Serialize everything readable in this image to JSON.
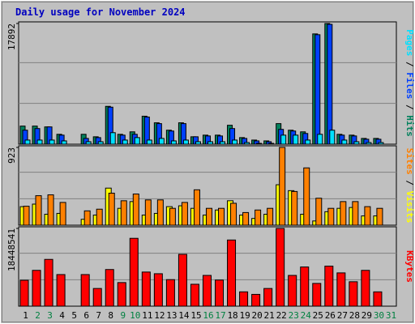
{
  "chart_data": [
    {
      "type": "bar",
      "title": "Daily usage for November 2024",
      "ylim": [
        0,
        17892
      ],
      "yticks": [
        17892
      ],
      "series": [
        {
          "name": "Hits",
          "color": "#00805c",
          "values": [
            2684,
            2684,
            2562,
            1464,
            0,
            1464,
            1098,
            5612,
            1464,
            1830,
            4148,
            3172,
            2074,
            3172,
            1098,
            1342,
            1342,
            2806,
            976,
            610,
            488,
            3050,
            2074,
            1830,
            16350,
            17892,
            1464,
            1342,
            854,
            854,
            0
          ]
        },
        {
          "name": "Files",
          "color": "#0040ff",
          "values": [
            2074,
            2318,
            2562,
            1342,
            0,
            854,
            976,
            5490,
            1342,
            1464,
            4026,
            3050,
            1952,
            3050,
            1098,
            1220,
            1220,
            2318,
            854,
            488,
            366,
            2196,
            1952,
            1586,
            16230,
            17770,
            1342,
            1220,
            732,
            732,
            0
          ]
        },
        {
          "name": "Pages",
          "color": "#00e0ff",
          "values": [
            610,
            610,
            610,
            488,
            0,
            366,
            366,
            1708,
            610,
            976,
            610,
            854,
            488,
            610,
            366,
            366,
            366,
            610,
            244,
            122,
            122,
            1342,
            1342,
            610,
            1464,
            2074,
            610,
            366,
            244,
            244,
            0
          ]
        }
      ]
    },
    {
      "type": "bar",
      "ylim": [
        0,
        923
      ],
      "yticks": [
        923
      ],
      "series": [
        {
          "name": "Visits",
          "color": "#ffff00",
          "values": [
            220,
            250,
            130,
            140,
            0,
            70,
            120,
            440,
            200,
            280,
            120,
            140,
            220,
            230,
            200,
            120,
            180,
            290,
            120,
            80,
            130,
            480,
            410,
            130,
            50,
            160,
            200,
            210,
            110,
            110,
            0
          ]
        },
        {
          "name": "Sites",
          "color": "#ff8000",
          "values": [
            225,
            350,
            360,
            270,
            0,
            170,
            190,
            380,
            290,
            370,
            300,
            300,
            200,
            270,
            420,
            200,
            200,
            260,
            150,
            180,
            200,
            923,
            400,
            680,
            320,
            200,
            280,
            280,
            220,
            200,
            0
          ]
        }
      ]
    },
    {
      "type": "bar",
      "ylim": [
        0,
        18448541
      ],
      "yticks": [
        18448541
      ],
      "series": [
        {
          "name": "KBytes",
          "color": "#ff0000",
          "values": [
            6150000,
            8500000,
            11100000,
            7500000,
            0,
            7500000,
            4200000,
            8700000,
            5600000,
            16100000,
            8100000,
            7700000,
            6300000,
            12300000,
            5200000,
            7300000,
            6200000,
            15700000,
            3400000,
            2800000,
            4200000,
            18448541,
            7300000,
            9300000,
            5400000,
            9500000,
            7900000,
            5800000,
            8500000,
            3400000,
            0
          ]
        }
      ],
      "categories": [
        "1",
        "2",
        "3",
        "4",
        "5",
        "6",
        "7",
        "8",
        "9",
        "10",
        "11",
        "12",
        "13",
        "14",
        "15",
        "16",
        "17",
        "18",
        "19",
        "20",
        "21",
        "22",
        "23",
        "24",
        "25",
        "26",
        "27",
        "28",
        "29",
        "30",
        "31"
      ],
      "category_colors": [
        "#000000",
        "#008040",
        "#008040",
        "#000000",
        "#000000",
        "#000000",
        "#000000",
        "#000000",
        "#008040",
        "#008040",
        "#000000",
        "#000000",
        "#000000",
        "#000000",
        "#000000",
        "#008040",
        "#008040",
        "#000000",
        "#000000",
        "#000000",
        "#000000",
        "#000000",
        "#008040",
        "#008040",
        "#000000",
        "#000000",
        "#000000",
        "#000000",
        "#000000",
        "#008040",
        "#008040"
      ]
    }
  ]
}
